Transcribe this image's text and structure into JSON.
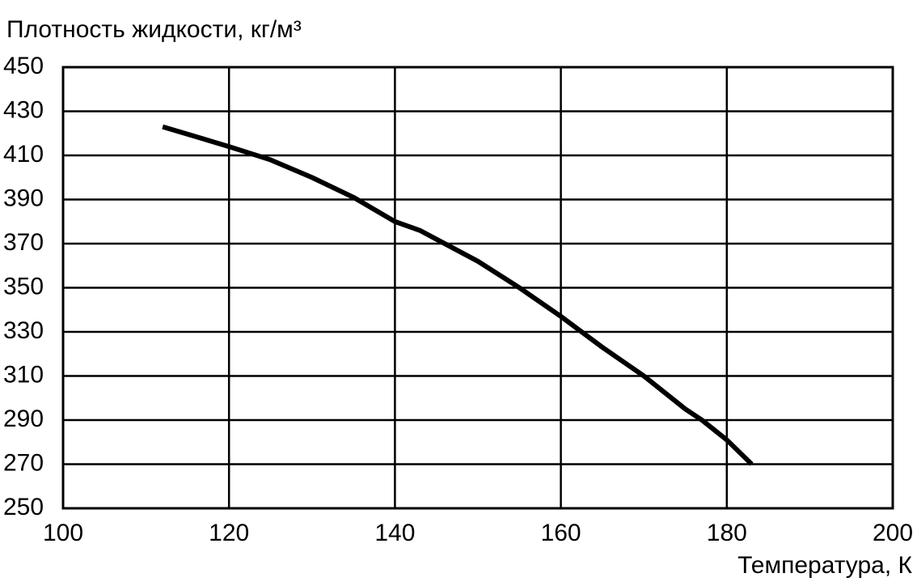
{
  "chart_data": {
    "type": "line",
    "ylabel": "Плотность жидкости, кг/м³",
    "xlabel": "Температура, К",
    "x": [
      112,
      120,
      125,
      130,
      135,
      140,
      143,
      145,
      150,
      155,
      160,
      165,
      170,
      175,
      177,
      180,
      183
    ],
    "values": [
      423,
      414,
      408,
      400,
      391,
      380,
      376,
      372,
      362,
      350,
      337,
      323,
      310,
      295,
      290,
      281,
      270
    ],
    "color": "#000000",
    "xlim": [
      100,
      200
    ],
    "xticks": [
      100,
      120,
      140,
      160,
      180,
      200
    ],
    "ylim": [
      250,
      450
    ],
    "yticks": [
      250,
      270,
      290,
      310,
      330,
      350,
      370,
      390,
      410,
      430,
      450
    ],
    "grid": true
  }
}
